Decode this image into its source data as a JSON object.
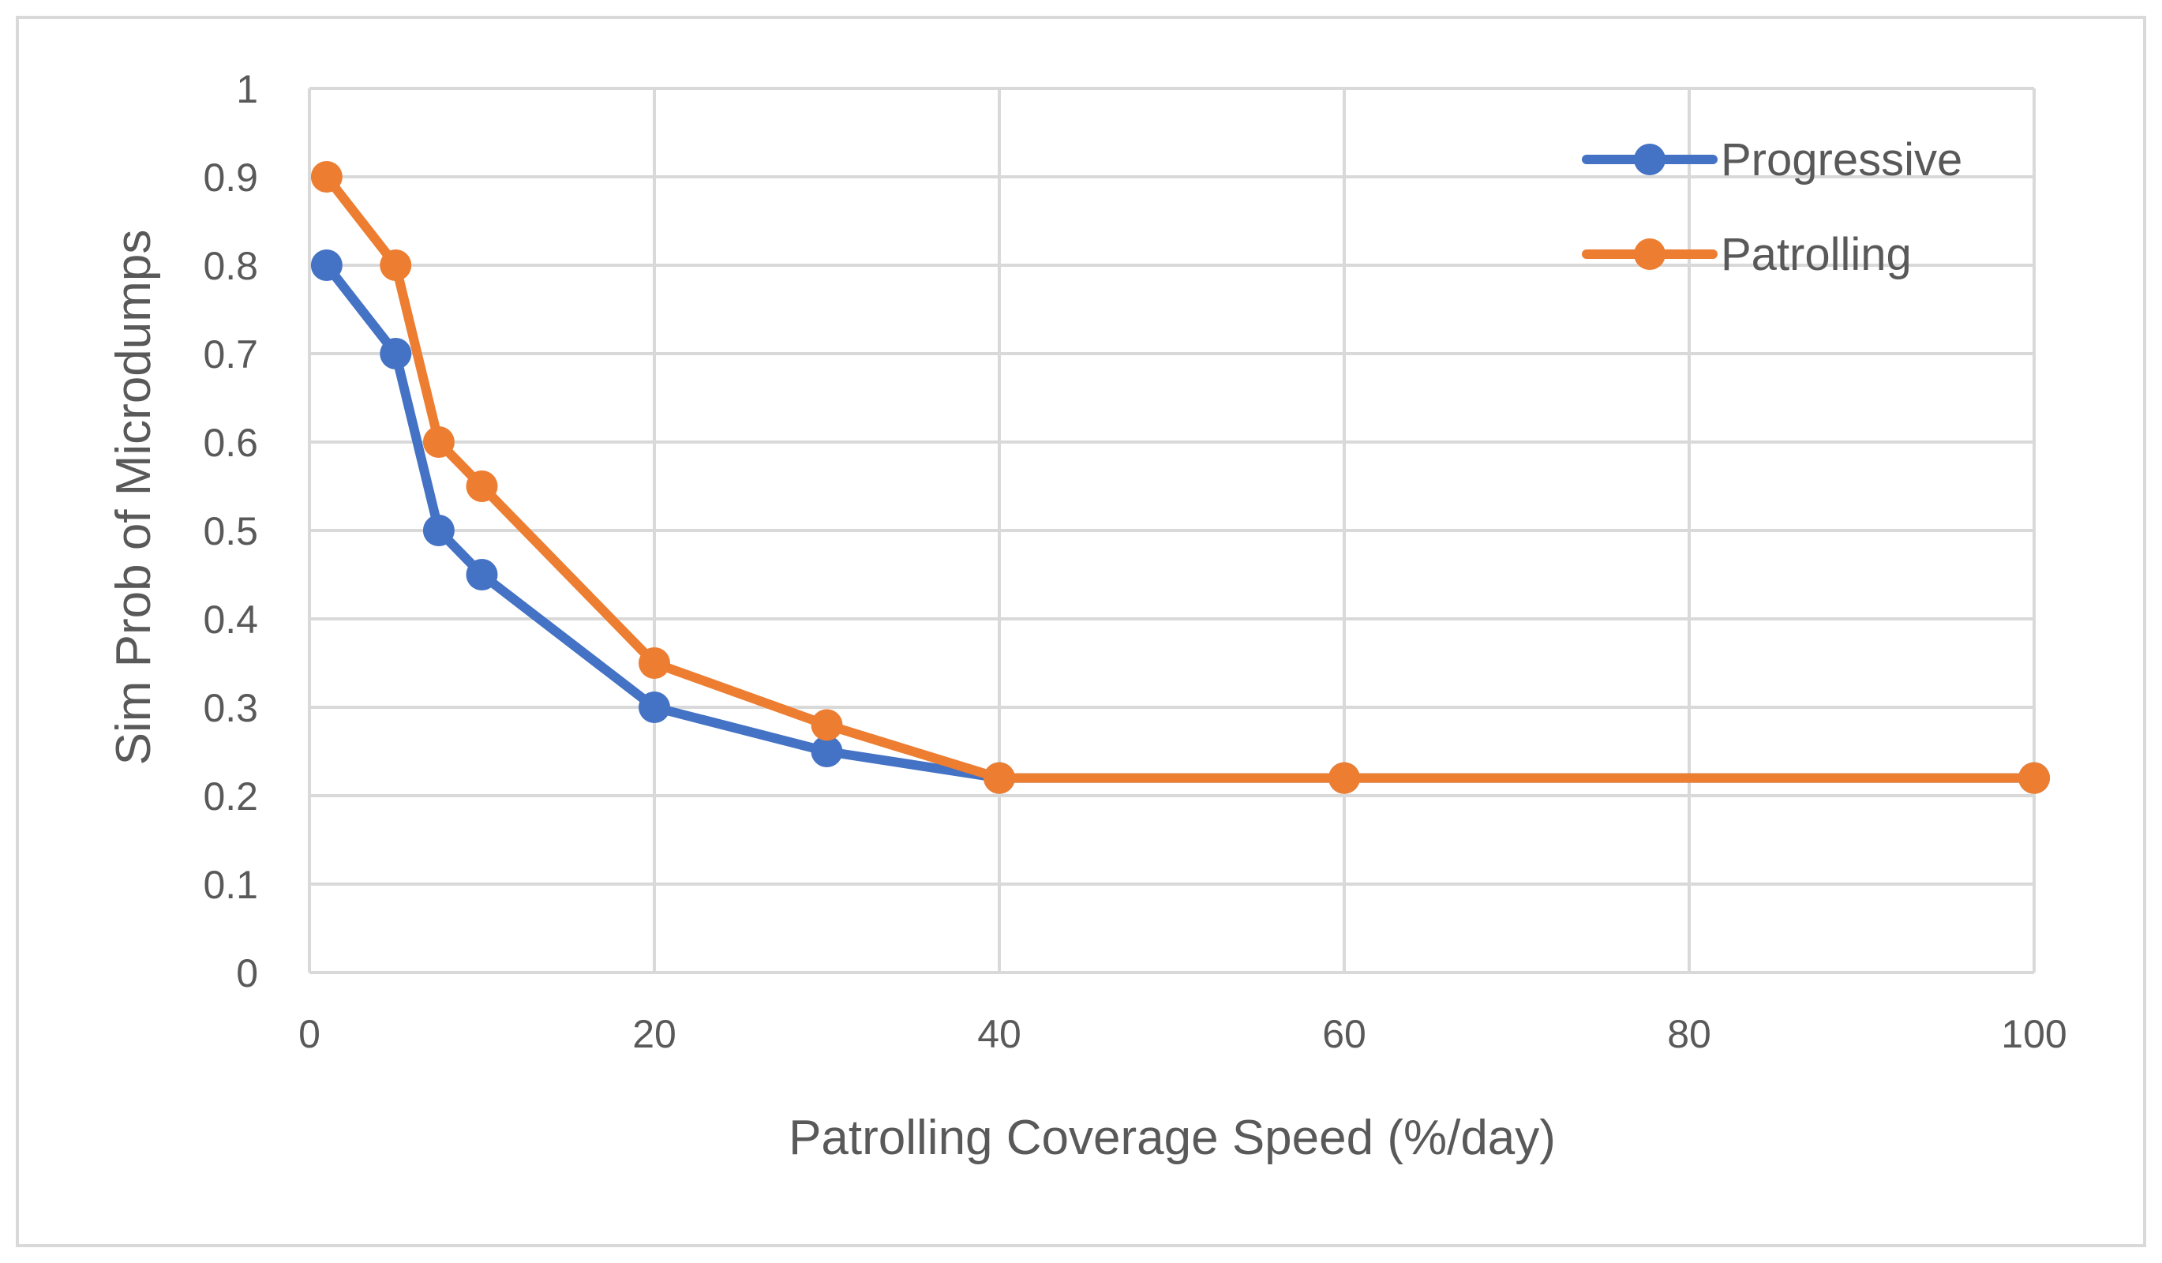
{
  "chart_data": {
    "type": "line",
    "title": "",
    "xlabel": "Patrolling Coverage Speed (%/day)",
    "ylabel": "Sim Prob of Microdumps",
    "xlim": [
      0,
      100
    ],
    "ylim": [
      0,
      1
    ],
    "xticks": [
      0,
      20,
      40,
      60,
      80,
      100
    ],
    "yticks": [
      0,
      0.1,
      0.2,
      0.3,
      0.4,
      0.5,
      0.6,
      0.7,
      0.8,
      0.9,
      1
    ],
    "grid": true,
    "legend_position": "top-right",
    "series": [
      {
        "name": "Progressive",
        "color": "#4472c4",
        "x": [
          1,
          5,
          7.5,
          10,
          20,
          30,
          40,
          60,
          100
        ],
        "y": [
          0.8,
          0.7,
          0.5,
          0.45,
          0.3,
          0.25,
          0.22,
          0.22,
          0.22
        ]
      },
      {
        "name": "Patrolling",
        "color": "#ed7d31",
        "x": [
          1,
          5,
          7.5,
          10,
          20,
          30,
          40,
          60,
          100
        ],
        "y": [
          0.9,
          0.8,
          0.6,
          0.55,
          0.35,
          0.28,
          0.22,
          0.22,
          0.22
        ]
      }
    ]
  }
}
